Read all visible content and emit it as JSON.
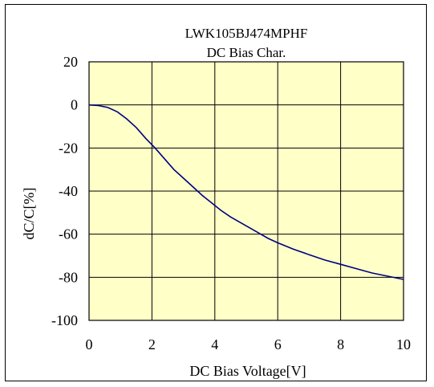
{
  "chart_data": {
    "type": "line",
    "title_lines": [
      "LWK105BJ474MPHF",
      "DC Bias Char."
    ],
    "xlabel": "DC Bias Voltage[V]",
    "ylabel": "dC/C[%]",
    "xlim": [
      0,
      10
    ],
    "ylim": [
      -100,
      20
    ],
    "xticks": [
      0,
      2,
      4,
      6,
      8,
      10
    ],
    "yticks": [
      20,
      0,
      -20,
      -40,
      -60,
      -80,
      -100
    ],
    "grid": true,
    "plot_background": "#ffffc8",
    "line_color": "#000080",
    "series": [
      {
        "x": [
          0,
          0.3,
          0.6,
          0.9,
          1.2,
          1.5,
          1.8,
          2.1,
          2.4,
          2.7,
          3.0,
          3.3,
          3.6,
          3.9,
          4.2,
          4.5,
          4.8,
          5.1,
          5.4,
          5.7,
          6.0,
          6.5,
          7.0,
          7.5,
          8.0,
          8.5,
          9.0,
          9.5,
          10.0
        ],
        "y": [
          0,
          -0.3,
          -1.2,
          -3.2,
          -6.5,
          -10.5,
          -15.5,
          -20,
          -25,
          -30,
          -34,
          -38,
          -42,
          -45.5,
          -49,
          -52,
          -54.5,
          -57,
          -59.5,
          -62,
          -64,
          -67,
          -69.5,
          -72,
          -74,
          -76,
          -78,
          -79.5,
          -81
        ]
      }
    ]
  }
}
